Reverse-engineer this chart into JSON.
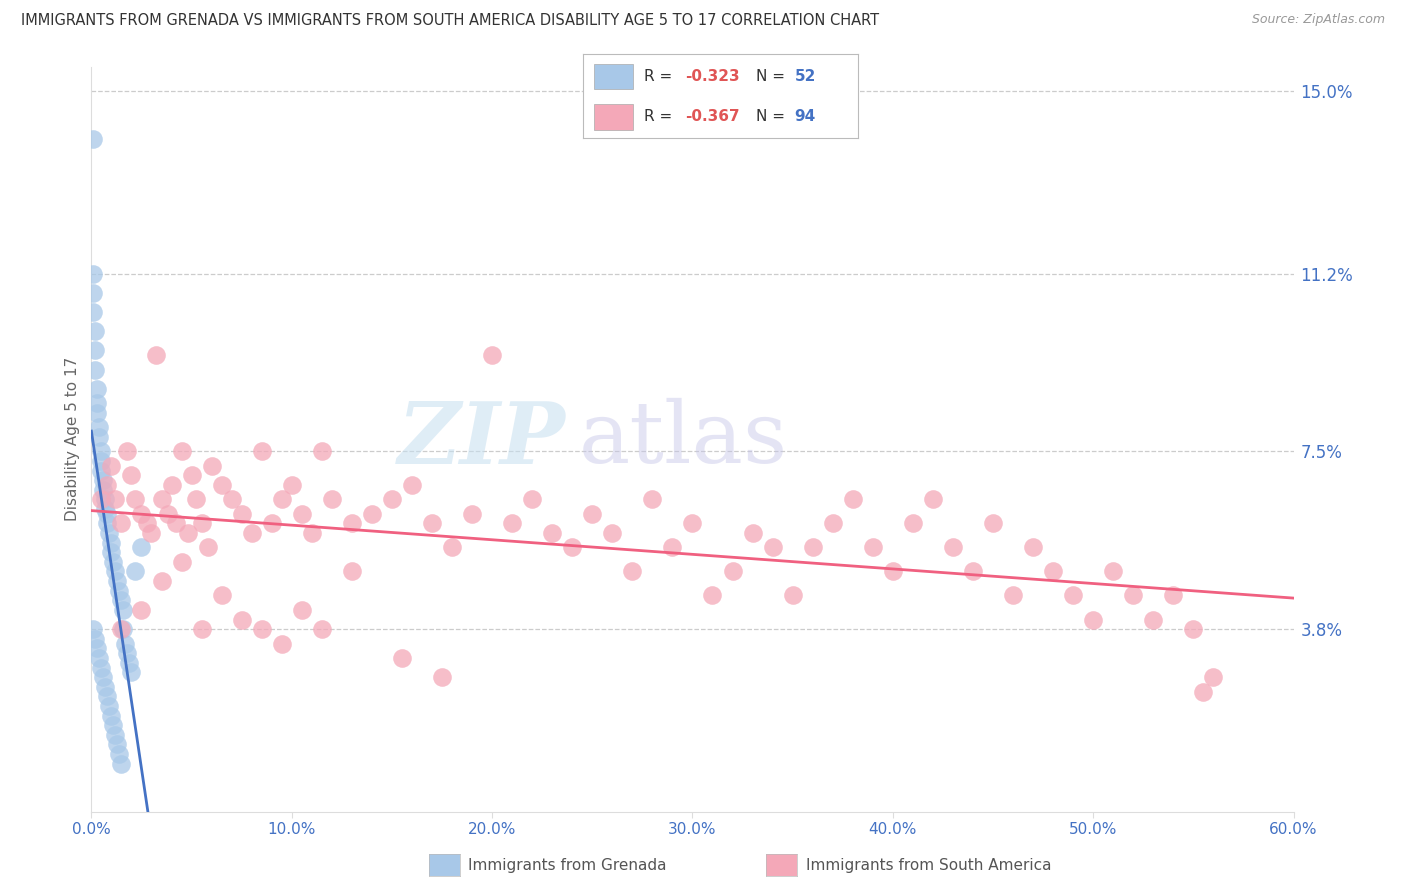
{
  "title": "IMMIGRANTS FROM GRENADA VS IMMIGRANTS FROM SOUTH AMERICA DISABILITY AGE 5 TO 17 CORRELATION CHART",
  "source": "Source: ZipAtlas.com",
  "ylabel": "Disability Age 5 to 17",
  "x_min": 0.0,
  "x_max": 0.6,
  "y_min": 0.0,
  "y_max": 0.155,
  "x_tick_vals": [
    0.0,
    0.1,
    0.2,
    0.3,
    0.4,
    0.5,
    0.6
  ],
  "x_tick_labels": [
    "0.0%",
    "10.0%",
    "20.0%",
    "30.0%",
    "40.0%",
    "50.0%",
    "60.0%"
  ],
  "y_ticks_right": [
    0.15,
    0.112,
    0.075,
    0.038
  ],
  "y_tick_labels_right": [
    "15.0%",
    "11.2%",
    "7.5%",
    "3.8%"
  ],
  "grenada_R": "-0.323",
  "grenada_N": "52",
  "south_america_R": "-0.367",
  "south_america_N": "94",
  "grenada_scatter_color": "#a8c8e8",
  "south_america_scatter_color": "#f4a8b8",
  "grenada_line_color": "#4472C4",
  "south_america_line_color": "#f06080",
  "legend_label_1": "Immigrants from Grenada",
  "legend_label_2": "Immigrants from South America",
  "watermark_zip": "ZIP",
  "watermark_atlas": "atlas",
  "r_color": "#e05555",
  "n_color": "#4472C4",
  "axis_label_color": "#4472C4",
  "ylabel_color": "#666666",
  "title_color": "#333333",
  "source_color": "#999999",
  "grid_color": "#cccccc",
  "background_color": "#ffffff",
  "grenada_x": [
    0.001,
    0.001,
    0.001,
    0.001,
    0.002,
    0.002,
    0.002,
    0.003,
    0.003,
    0.003,
    0.004,
    0.004,
    0.005,
    0.005,
    0.005,
    0.006,
    0.006,
    0.007,
    0.007,
    0.008,
    0.008,
    0.009,
    0.01,
    0.01,
    0.011,
    0.012,
    0.013,
    0.014,
    0.015,
    0.016,
    0.001,
    0.002,
    0.003,
    0.004,
    0.005,
    0.006,
    0.007,
    0.008,
    0.009,
    0.01,
    0.011,
    0.012,
    0.013,
    0.014,
    0.015,
    0.016,
    0.017,
    0.018,
    0.019,
    0.02,
    0.022,
    0.025
  ],
  "grenada_y": [
    0.14,
    0.112,
    0.108,
    0.104,
    0.1,
    0.096,
    0.092,
    0.088,
    0.085,
    0.083,
    0.08,
    0.078,
    0.075,
    0.073,
    0.071,
    0.069,
    0.067,
    0.065,
    0.063,
    0.062,
    0.06,
    0.058,
    0.056,
    0.054,
    0.052,
    0.05,
    0.048,
    0.046,
    0.044,
    0.042,
    0.038,
    0.036,
    0.034,
    0.032,
    0.03,
    0.028,
    0.026,
    0.024,
    0.022,
    0.02,
    0.018,
    0.016,
    0.014,
    0.012,
    0.01,
    0.038,
    0.035,
    0.033,
    0.031,
    0.029,
    0.05,
    0.055
  ],
  "sa_x": [
    0.005,
    0.008,
    0.01,
    0.012,
    0.015,
    0.018,
    0.02,
    0.022,
    0.025,
    0.028,
    0.03,
    0.032,
    0.035,
    0.038,
    0.04,
    0.042,
    0.045,
    0.048,
    0.05,
    0.052,
    0.055,
    0.058,
    0.06,
    0.065,
    0.07,
    0.075,
    0.08,
    0.085,
    0.09,
    0.095,
    0.1,
    0.105,
    0.11,
    0.115,
    0.12,
    0.13,
    0.14,
    0.15,
    0.16,
    0.17,
    0.18,
    0.19,
    0.2,
    0.21,
    0.22,
    0.23,
    0.24,
    0.25,
    0.26,
    0.27,
    0.28,
    0.29,
    0.3,
    0.31,
    0.32,
    0.33,
    0.34,
    0.35,
    0.36,
    0.37,
    0.38,
    0.39,
    0.4,
    0.41,
    0.42,
    0.43,
    0.44,
    0.45,
    0.46,
    0.47,
    0.48,
    0.49,
    0.5,
    0.51,
    0.52,
    0.53,
    0.54,
    0.55,
    0.555,
    0.56,
    0.015,
    0.025,
    0.035,
    0.045,
    0.055,
    0.065,
    0.075,
    0.085,
    0.095,
    0.105,
    0.115,
    0.13,
    0.155,
    0.175
  ],
  "sa_y": [
    0.065,
    0.068,
    0.072,
    0.065,
    0.06,
    0.075,
    0.07,
    0.065,
    0.062,
    0.06,
    0.058,
    0.095,
    0.065,
    0.062,
    0.068,
    0.06,
    0.075,
    0.058,
    0.07,
    0.065,
    0.06,
    0.055,
    0.072,
    0.068,
    0.065,
    0.062,
    0.058,
    0.075,
    0.06,
    0.065,
    0.068,
    0.062,
    0.058,
    0.075,
    0.065,
    0.06,
    0.062,
    0.065,
    0.068,
    0.06,
    0.055,
    0.062,
    0.095,
    0.06,
    0.065,
    0.058,
    0.055,
    0.062,
    0.058,
    0.05,
    0.065,
    0.055,
    0.06,
    0.045,
    0.05,
    0.058,
    0.055,
    0.045,
    0.055,
    0.06,
    0.065,
    0.055,
    0.05,
    0.06,
    0.065,
    0.055,
    0.05,
    0.06,
    0.045,
    0.055,
    0.05,
    0.045,
    0.04,
    0.05,
    0.045,
    0.04,
    0.045,
    0.038,
    0.025,
    0.028,
    0.038,
    0.042,
    0.048,
    0.052,
    0.038,
    0.045,
    0.04,
    0.038,
    0.035,
    0.042,
    0.038,
    0.05,
    0.032,
    0.028
  ]
}
